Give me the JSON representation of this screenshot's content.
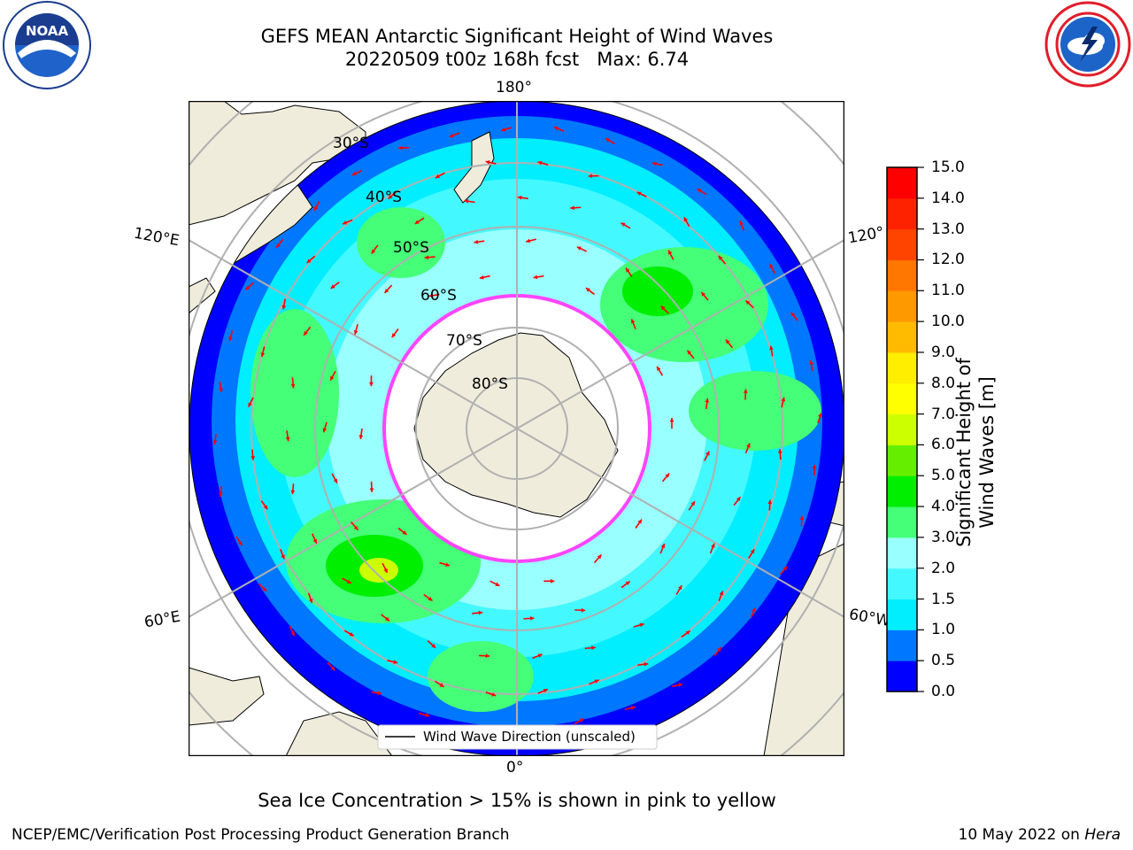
{
  "title_line1": "GEFS MEAN Antarctic Significant Height of Wind Waves",
  "title_line2": "20220509 t00z 168h fcst   Max: 6.74",
  "logos": {
    "left": {
      "icon": "noaa-logo-icon",
      "text": "NOAA"
    },
    "right": {
      "icon": "national-weather-service-logo-icon"
    }
  },
  "map": {
    "projection": "south-polar-stereographic",
    "longitude_labels": {
      "top": "180°",
      "bottom": "0°",
      "left_upper": "120°E",
      "right_upper": "120°",
      "left_lower": "60°E",
      "right_lower": "60°W"
    },
    "latitude_labels": [
      "30°S",
      "40°S",
      "50°S",
      "60°S",
      "70°S",
      "80°S"
    ],
    "legend_text": "Wind Wave Direction (unscaled)",
    "arrow_color": "#ff0000",
    "land_color": "#efecdc",
    "ice_color": "#ffffff"
  },
  "colorbar": {
    "title": "Significant Height of Wind Waves [m]",
    "ticks": [
      "15.0",
      "14.0",
      "13.0",
      "12.0",
      "11.0",
      "10.0",
      "9.0",
      "8.0",
      "7.0",
      "6.0",
      "5.0",
      "4.0",
      "3.0",
      "2.0",
      "1.5",
      "1.0",
      "0.5",
      "0.0"
    ],
    "colors": [
      "#0000ff",
      "#0077ff",
      "#00eeff",
      "#44f8ff",
      "#99ffff",
      "#44ff77",
      "#00ee00",
      "#66ee00",
      "#ccff00",
      "#ffff00",
      "#ffee00",
      "#ffbb00",
      "#ff9900",
      "#ff7700",
      "#ff4400",
      "#ff2200",
      "#ff0000"
    ]
  },
  "footnote": "Sea Ice Concentration > 15% is shown in pink to yellow",
  "credit_left": "NCEP/EMC/Verification Post Processing Product Generation Branch",
  "credit_right_date": "10 May 2022 on ",
  "credit_right_host": "Hera"
}
